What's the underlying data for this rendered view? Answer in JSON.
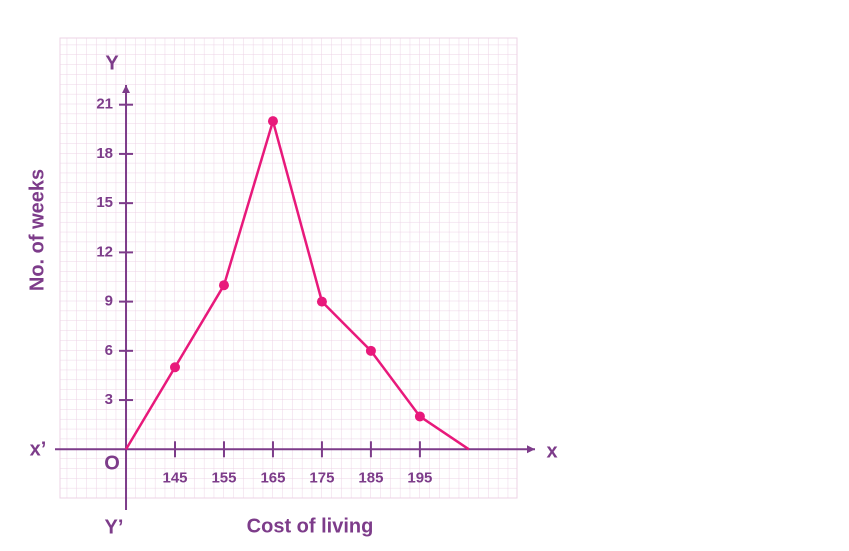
{
  "chart_data": {
    "type": "line",
    "y_label": "No. of weeks",
    "x_label": "Cost of living",
    "x_axis_name": "x",
    "x_axis_neg_name": "x’",
    "y_axis_name": "Y",
    "y_axis_neg_name": "Y’",
    "origin_label": "O",
    "x": [
      135,
      145,
      155,
      165,
      175,
      185,
      195,
      205
    ],
    "values": [
      0,
      5,
      10,
      20,
      9,
      6,
      2,
      0
    ],
    "color": "#e8197b",
    "xlim": [
      120.5,
      218.5
    ],
    "xticks": [
      145,
      155,
      165,
      175,
      185,
      195
    ],
    "ylim": [
      -3.7,
      22.2
    ],
    "yticks": [
      3,
      6,
      9,
      12,
      15,
      18,
      21
    ]
  }
}
